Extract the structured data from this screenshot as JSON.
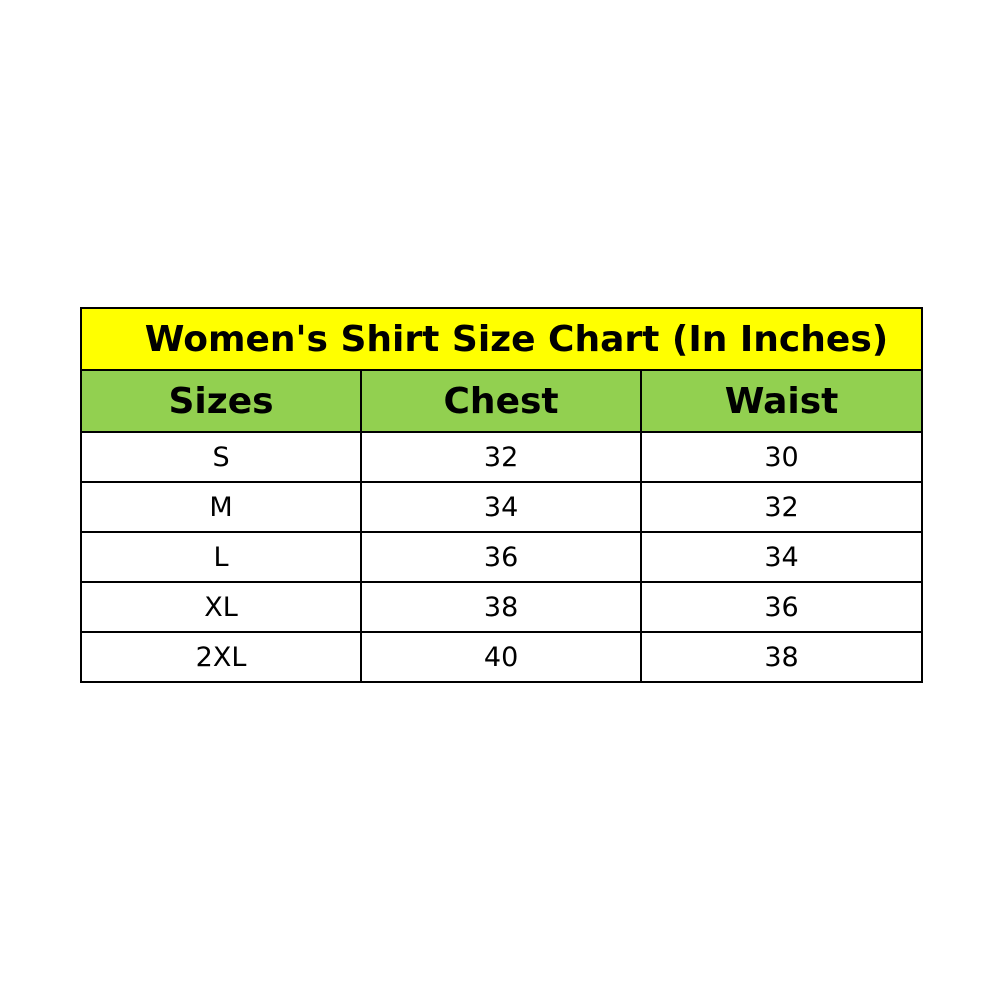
{
  "title": "Women's Shirt Size Chart (In Inches)",
  "headers": [
    "Sizes",
    "Chest",
    "Waist"
  ],
  "rows": [
    [
      "S",
      "32",
      "30"
    ],
    [
      "M",
      "34",
      "32"
    ],
    [
      "L",
      "36",
      "34"
    ],
    [
      "XL",
      "38",
      "36"
    ],
    [
      "2XL",
      "40",
      "38"
    ]
  ],
  "colors": {
    "title_bg": "#ffff00",
    "header_bg": "#92d050"
  }
}
